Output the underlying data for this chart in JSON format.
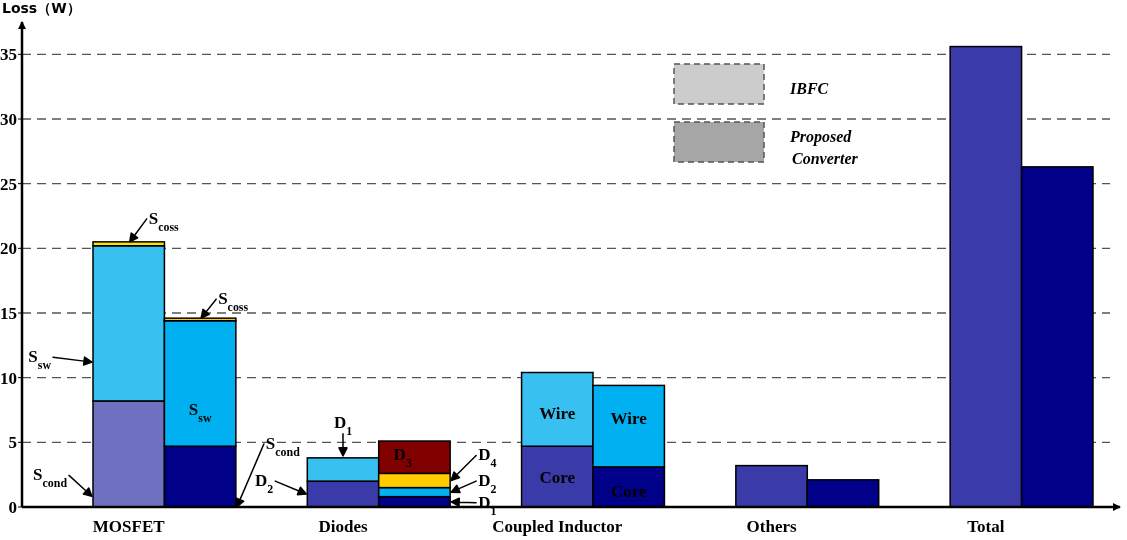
{
  "chart_data": {
    "type": "bar",
    "stacked": true,
    "ylabel": "Loss（W）",
    "categories": [
      "MOSFET",
      null,
      null,
      "Diodes",
      null,
      null,
      "Coupled Inductor",
      null,
      null,
      "Others",
      null,
      null,
      "Total",
      null
    ],
    "series": [
      {
        "values": [
          8.2,
          4.7,
          null,
          2.0,
          0.8,
          null,
          4.7,
          3.1,
          null,
          3.2,
          2.1,
          null,
          35.6,
          26.3
        ],
        "colors": [
          "#7070c0",
          "#000088",
          null,
          "#3a3aa8",
          "#000088",
          null,
          "#3a3aa8",
          "#000088",
          null,
          "#3a3aa8",
          "#000088",
          null,
          "#3a3aa8",
          "#000088"
        ]
      },
      {
        "values": [
          12.0,
          9.7,
          null,
          1.8,
          0.7,
          null,
          5.7,
          6.3,
          null,
          null,
          null,
          null,
          null,
          null
        ],
        "colors": [
          "#38c0f0",
          "#00b0f0",
          null,
          "#38c0f0",
          "#00b0f0",
          null,
          "#38c0f0",
          "#00b0f0",
          null,
          null,
          null,
          null,
          null,
          null
        ]
      },
      {
        "values": [
          0.3,
          0.2,
          null,
          null,
          1.1,
          null,
          null,
          null,
          null,
          null,
          null,
          null,
          null,
          null
        ],
        "colors": [
          "#ffe000",
          "#ffcc00",
          null,
          null,
          "#ffcc00",
          null,
          null,
          null,
          null,
          null,
          null,
          null,
          null,
          null
        ]
      },
      {
        "values": [
          null,
          null,
          null,
          null,
          2.5,
          null,
          null,
          null,
          null,
          null,
          null,
          null,
          null,
          null
        ],
        "colors": [
          null,
          null,
          null,
          null,
          "#800000",
          null,
          null,
          null,
          null,
          null,
          null,
          null,
          null,
          null
        ]
      }
    ],
    "ylim": [
      0,
      37.5
    ],
    "yticks": [
      0,
      5,
      10,
      15,
      20,
      25,
      30,
      35
    ],
    "grid": "y",
    "annotations": [
      "S$_{coss}$",
      "S$_{sw}$",
      "S$_{cond}$",
      "S$_{coss}$",
      "S$_{sw}$",
      "S$_{cond}$",
      "D$_{1}$",
      "D$_{2}$",
      "D$_{3}$",
      "D$_{4}$",
      "D$_{2}$",
      "D$_{1}$",
      "Core",
      "Wire",
      "Core",
      "Wire",
      "IBFC",
      "Proposed Converter"
    ]
  }
}
